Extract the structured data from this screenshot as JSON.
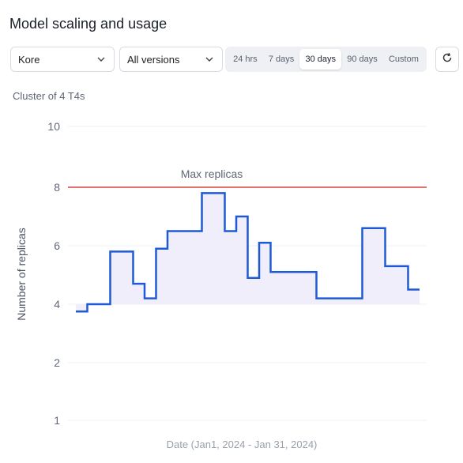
{
  "page": {
    "title": "Model scaling and usage"
  },
  "filters": {
    "model_select": {
      "value": "Kore",
      "icon": "chevron-down-icon"
    },
    "version_select": {
      "value": "All versions",
      "icon": "chevron-down-icon"
    },
    "time_ranges": [
      {
        "label": "24 hrs",
        "active": false
      },
      {
        "label": "7 days",
        "active": false
      },
      {
        "label": "30 days",
        "active": true
      },
      {
        "label": "90 days",
        "active": false
      },
      {
        "label": "Custom",
        "active": false
      }
    ],
    "refresh_icon": "refresh-icon"
  },
  "cluster_label": "Cluster of 4 T4s",
  "colors": {
    "line": "#1f5ad6",
    "fill": "#f1eefb",
    "max_line": "#d64541",
    "grid": "#eceff3"
  },
  "chart_data": {
    "type": "line",
    "step": true,
    "xlabel": "Date (Jan1, 2024 - Jan 31, 2024)",
    "ylabel": "Number of replicas",
    "y_ticks": [
      1,
      2,
      4,
      6,
      8,
      10
    ],
    "grid": true,
    "reference_line": {
      "label": "Max replicas",
      "value": 8
    },
    "series": [
      {
        "x": [
          1,
          2,
          3,
          4,
          5,
          6,
          7,
          8,
          9,
          10,
          11,
          12,
          13,
          14,
          15,
          16,
          17,
          18,
          19,
          20,
          21,
          22,
          23,
          24,
          25,
          26,
          27,
          28,
          29,
          30,
          31
        ],
        "values": [
          3.75,
          4.0,
          4.0,
          5.8,
          5.8,
          4.7,
          4.2,
          5.9,
          6.5,
          6.5,
          6.5,
          7.8,
          7.8,
          6.5,
          7.0,
          4.9,
          6.1,
          5.1,
          5.1,
          5.1,
          5.1,
          4.2,
          4.2,
          4.2,
          4.2,
          6.6,
          6.6,
          5.3,
          5.3,
          4.5,
          4.5
        ]
      }
    ]
  }
}
